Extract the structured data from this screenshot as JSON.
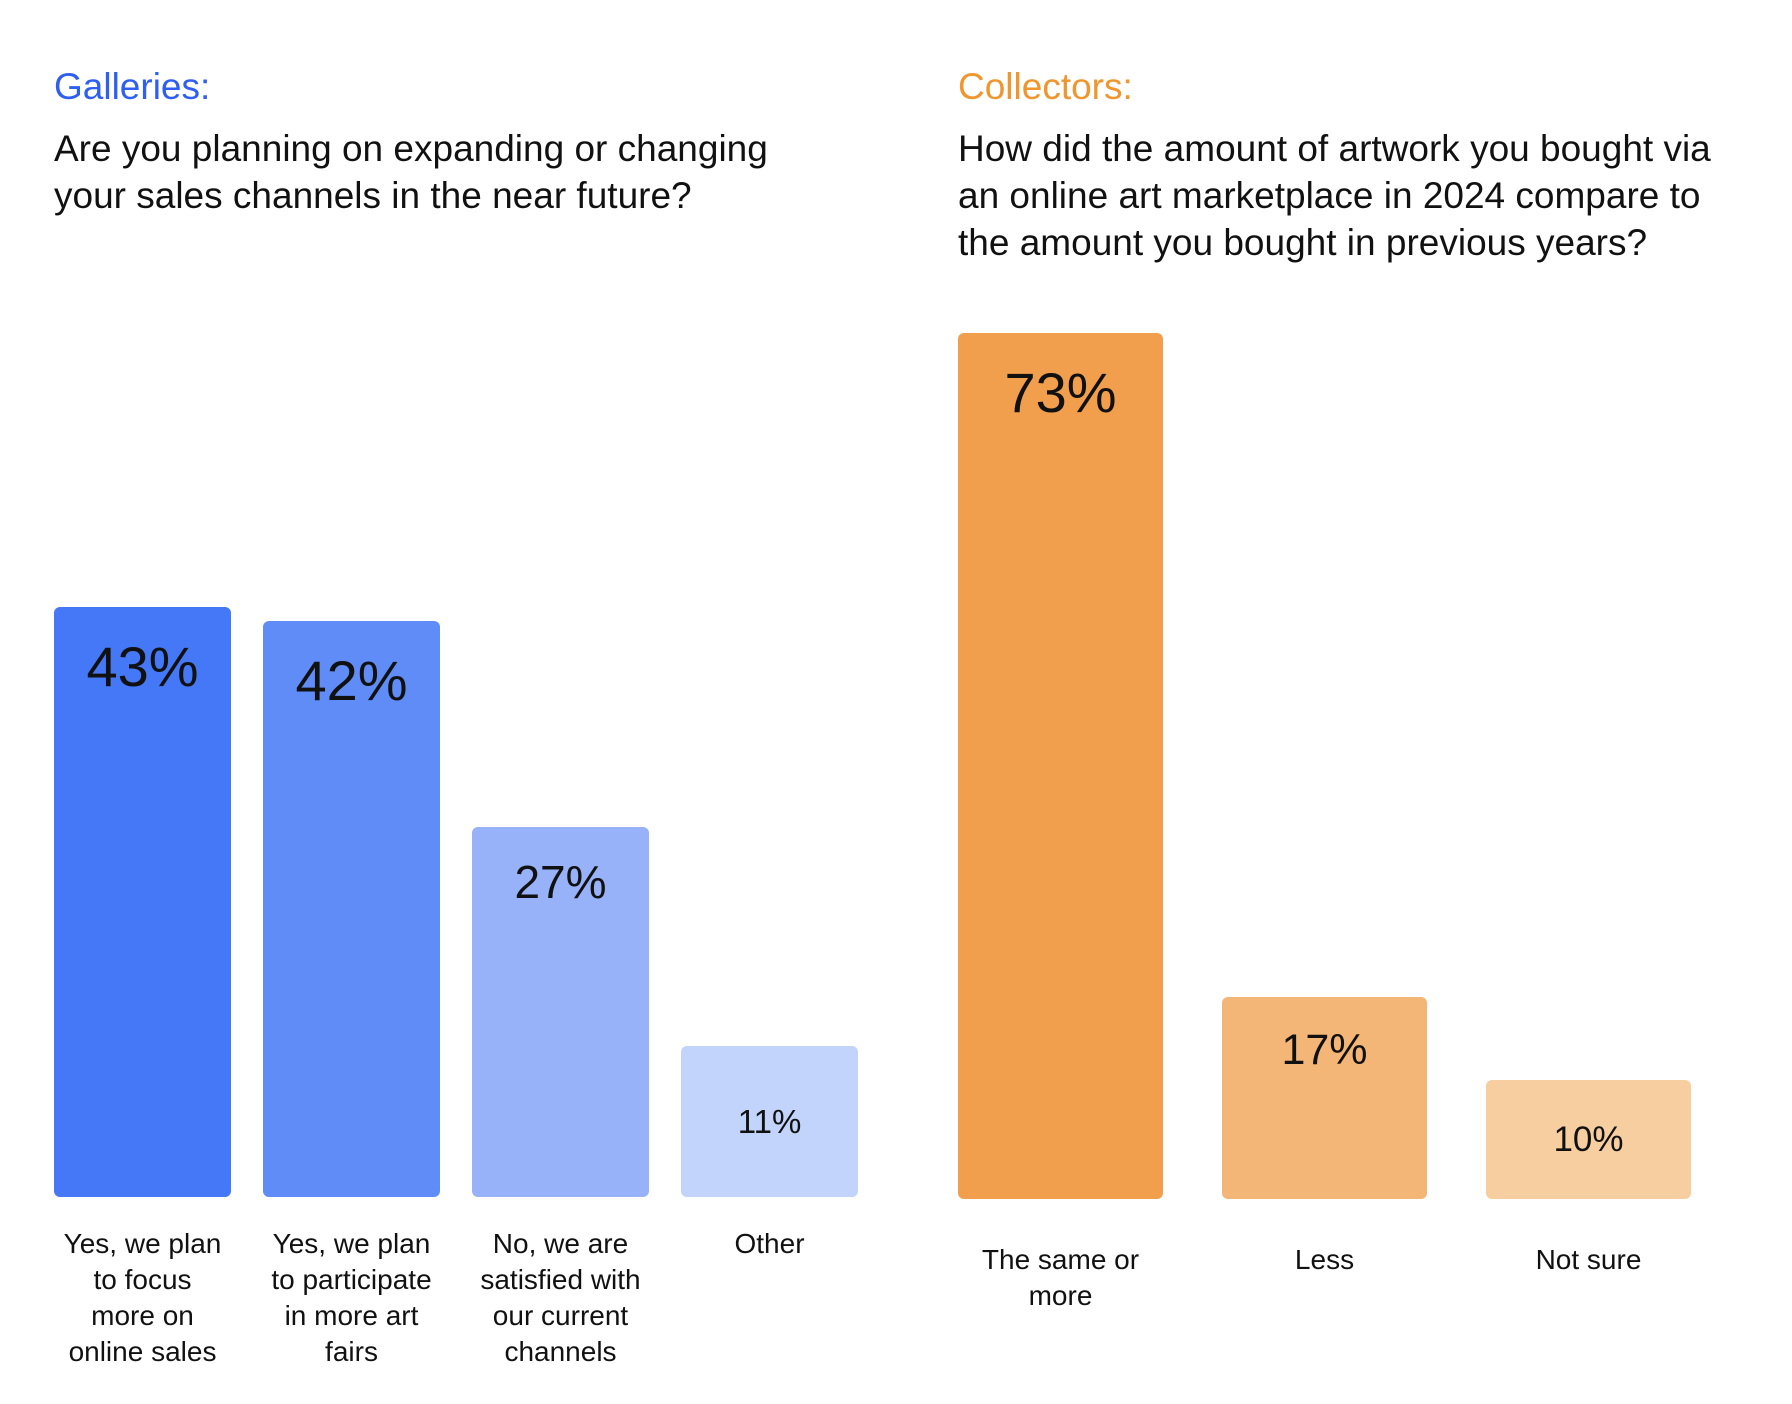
{
  "chart_data": [
    {
      "type": "bar",
      "label": "Galleries:",
      "title": "Are you planning on expanding or changing\nyour sales channels in the near future?",
      "categories": [
        "Yes, we plan\nto focus\nmore on\nonline sales",
        "Yes, we plan\nto participate\nin more art\nfairs",
        "No, we are\nsatisfied with\nour current\nchannels",
        "Other"
      ],
      "values": [
        43,
        42,
        27,
        11
      ],
      "value_labels": [
        "43%",
        "42%",
        "27%",
        "11%"
      ],
      "colors": [
        "#4578f6",
        "#5f8cf6",
        "#97b2f9",
        "#c2d4fb"
      ],
      "accent_color": "#2f5ff0",
      "ylim": [
        0,
        45
      ],
      "grid": false,
      "legend": "none"
    },
    {
      "type": "bar",
      "label": "Collectors:",
      "title": "How did the amount of artwork you bought via\nan online art marketplace in 2024 compare to\nthe amount you bought in previous years?",
      "categories": [
        "The same or\nmore",
        "Less",
        "Not sure"
      ],
      "values": [
        73,
        17,
        10
      ],
      "value_labels": [
        "73%",
        "17%",
        "10%"
      ],
      "colors": [
        "#f29f4d",
        "#f4b676",
        "#f7ce9f"
      ],
      "accent_color": "#f0962f",
      "ylim": [
        0,
        73
      ],
      "grid": false,
      "legend": "none"
    }
  ]
}
